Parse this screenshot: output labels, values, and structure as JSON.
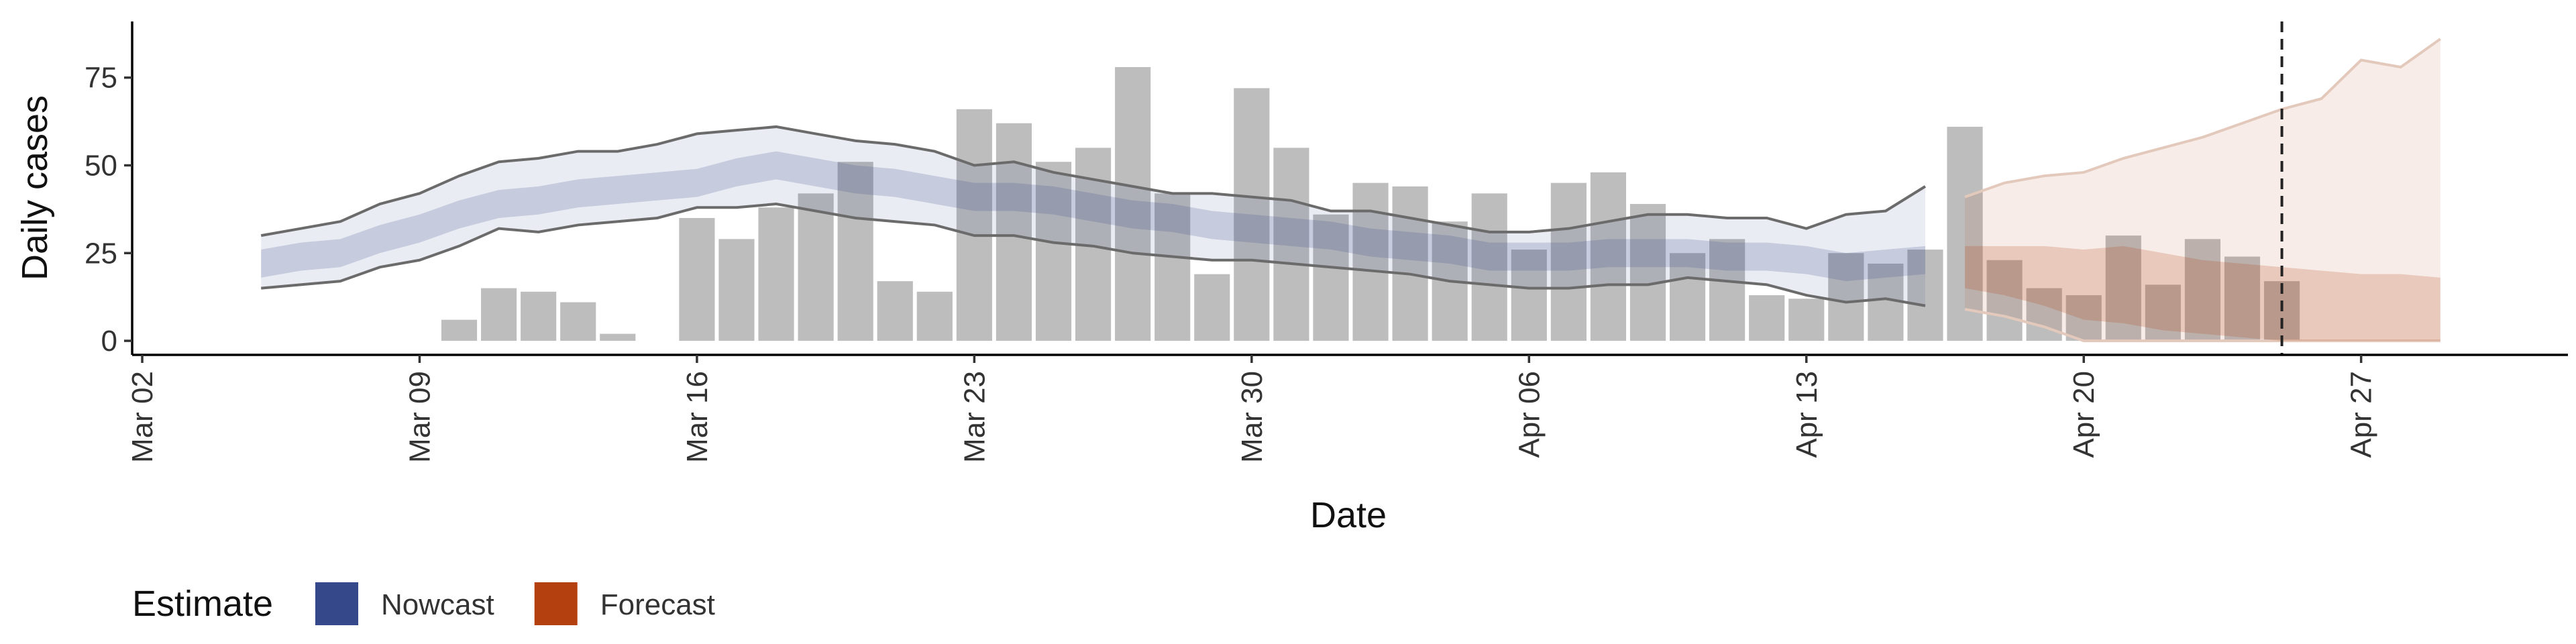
{
  "chart_data": {
    "type": "ribbon",
    "x_label": "Date",
    "y_label": "Daily cases",
    "legend_title": "Estimate",
    "legend": "bottom-left",
    "xlim": [
      "Mar 02",
      "May 02"
    ],
    "xticks": [
      "Mar 02",
      "Mar 09",
      "Mar 16",
      "Mar 23",
      "Mar 30",
      "Apr 06",
      "Apr 13",
      "Apr 20",
      "Apr 27"
    ],
    "ylim": [
      -4,
      91
    ],
    "yticks": [
      0,
      25,
      50,
      75
    ],
    "vline": "Apr 25",
    "bars": {
      "color": "#bdbdbd",
      "x": [
        "Mar 10",
        "Mar 11",
        "Mar 12",
        "Mar 13",
        "Mar 14",
        "Mar 15",
        "Mar 16",
        "Mar 17",
        "Mar 18",
        "Mar 19",
        "Mar 20",
        "Mar 21",
        "Mar 22",
        "Mar 23",
        "Mar 24",
        "Mar 25",
        "Mar 26",
        "Mar 27",
        "Mar 28",
        "Mar 29",
        "Mar 30",
        "Mar 31",
        "Apr 01",
        "Apr 02",
        "Apr 03",
        "Apr 04",
        "Apr 05",
        "Apr 06",
        "Apr 07",
        "Apr 08",
        "Apr 09",
        "Apr 10",
        "Apr 11",
        "Apr 12",
        "Apr 13",
        "Apr 14",
        "Apr 15",
        "Apr 16",
        "Apr 17",
        "Apr 18",
        "Apr 19",
        "Apr 20",
        "Apr 21",
        "Apr 22",
        "Apr 23",
        "Apr 24",
        "Apr 25"
      ],
      "values": [
        6,
        15,
        14,
        11,
        2,
        0,
        35,
        29,
        38,
        42,
        51,
        17,
        14,
        66,
        62,
        51,
        55,
        78,
        42,
        19,
        72,
        55,
        36,
        45,
        44,
        34,
        42,
        26,
        45,
        48,
        39,
        25,
        29,
        13,
        12,
        25,
        22,
        26,
        61,
        23,
        15,
        13,
        30,
        16,
        29,
        24,
        17
      ]
    },
    "series": [
      {
        "name": "Nowcast",
        "color": "#35498a",
        "edge_color": "#6b6b6b",
        "x": [
          "Mar 05",
          "Mar 06",
          "Mar 07",
          "Mar 08",
          "Mar 09",
          "Mar 10",
          "Mar 11",
          "Mar 12",
          "Mar 13",
          "Mar 14",
          "Mar 15",
          "Mar 16",
          "Mar 17",
          "Mar 18",
          "Mar 19",
          "Mar 20",
          "Mar 21",
          "Mar 22",
          "Mar 23",
          "Mar 24",
          "Mar 25",
          "Mar 26",
          "Mar 27",
          "Mar 28",
          "Mar 29",
          "Mar 30",
          "Mar 31",
          "Apr 01",
          "Apr 02",
          "Apr 03",
          "Apr 04",
          "Apr 05",
          "Apr 06",
          "Apr 07",
          "Apr 08",
          "Apr 09",
          "Apr 10",
          "Apr 11",
          "Apr 12",
          "Apr 13",
          "Apr 14",
          "Apr 15",
          "Apr 16"
        ],
        "bands": [
          {
            "lower": [
              15,
              16,
              17,
              21,
              23,
              27,
              32,
              31,
              33,
              34,
              35,
              38,
              38,
              39,
              37,
              35,
              34,
              33,
              30,
              30,
              28,
              27,
              25,
              24,
              23,
              23,
              22,
              21,
              20,
              19,
              17,
              16,
              15,
              15,
              16,
              16,
              18,
              17,
              16,
              13,
              11,
              12,
              10
            ],
            "upper": [
              30,
              32,
              34,
              39,
              42,
              47,
              51,
              52,
              54,
              54,
              56,
              59,
              60,
              61,
              59,
              57,
              56,
              54,
              50,
              51,
              48,
              46,
              44,
              42,
              42,
              41,
              40,
              37,
              37,
              35,
              33,
              31,
              31,
              32,
              34,
              36,
              36,
              35,
              35,
              32,
              36,
              37,
              44
            ]
          },
          {
            "lower": [
              18,
              20,
              21,
              25,
              28,
              32,
              35,
              36,
              38,
              39,
              40,
              41,
              44,
              46,
              44,
              42,
              41,
              39,
              37,
              37,
              36,
              34,
              32,
              31,
              29,
              28,
              27,
              26,
              24,
              23,
              22,
              20,
              20,
              20,
              21,
              21,
              21,
              20,
              20,
              19,
              17,
              18,
              19
            ],
            "upper": [
              26,
              28,
              29,
              33,
              36,
              40,
              43,
              44,
              46,
              47,
              48,
              49,
              52,
              54,
              52,
              50,
              49,
              47,
              45,
              45,
              44,
              42,
              40,
              39,
              37,
              36,
              35,
              34,
              32,
              31,
              30,
              28,
              28,
              28,
              29,
              29,
              29,
              28,
              28,
              27,
              25,
              26,
              27
            ]
          }
        ]
      },
      {
        "name": "Forecast",
        "color": "#b5400f",
        "edge_color": "#e3c9bc",
        "x": [
          "Apr 17",
          "Apr 18",
          "Apr 19",
          "Apr 20",
          "Apr 21",
          "Apr 22",
          "Apr 23",
          "Apr 24",
          "Apr 25",
          "Apr 26",
          "Apr 27",
          "Apr 28",
          "Apr 29"
        ],
        "bands": [
          {
            "lower": [
              9,
              7,
              4,
              0,
              0,
              0,
              0,
              0,
              0,
              0,
              0,
              0,
              0
            ],
            "upper": [
              41,
              45,
              47,
              48,
              52,
              55,
              58,
              62,
              66,
              69,
              80,
              78,
              86
            ]
          },
          {
            "lower": [
              15,
              13,
              10,
              6,
              5,
              3,
              2,
              1,
              0,
              0,
              0,
              0,
              0
            ],
            "upper": [
              27,
              27,
              27,
              26,
              27,
              25,
              23,
              22,
              21,
              20,
              19,
              19,
              18
            ]
          }
        ]
      }
    ]
  }
}
